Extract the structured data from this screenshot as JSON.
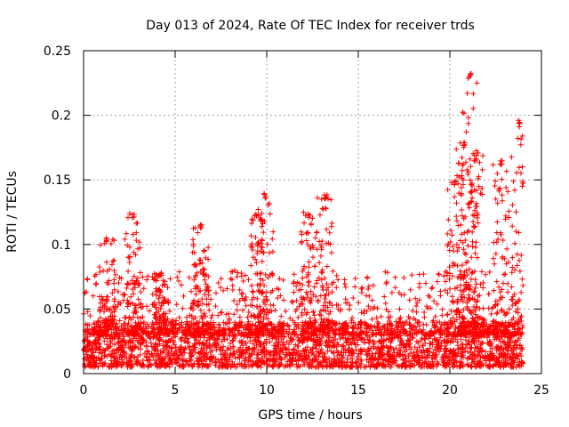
{
  "chart_data": {
    "type": "scatter",
    "title": "Day 013 of 2024, Rate Of TEC Index for receiver trds",
    "xlabel": "GPS time / hours",
    "ylabel": "ROTI / TECUs",
    "xlim": [
      0,
      25
    ],
    "ylim": [
      0,
      0.25
    ],
    "x_ticks": [
      "0",
      "5",
      "10",
      "15",
      "20",
      "25"
    ],
    "y_ticks": [
      "0",
      "0.05",
      "0.1",
      "0.15",
      "0.2",
      "0.25"
    ],
    "grid": true,
    "marker": "+",
    "color": "#ff0000",
    "series": [
      {
        "x_range": [
          0,
          24
        ],
        "baseline_range": [
          0.005,
          0.04
        ],
        "peaks": [
          {
            "x": 1.3,
            "y": 0.105
          },
          {
            "x": 2.7,
            "y": 0.124
          },
          {
            "x": 4.2,
            "y": 0.08
          },
          {
            "x": 6.4,
            "y": 0.117
          },
          {
            "x": 9.4,
            "y": 0.125
          },
          {
            "x": 9.9,
            "y": 0.14
          },
          {
            "x": 12.3,
            "y": 0.125
          },
          {
            "x": 13.2,
            "y": 0.139
          },
          {
            "x": 20.3,
            "y": 0.15
          },
          {
            "x": 20.8,
            "y": 0.18
          },
          {
            "x": 21.1,
            "y": 0.233
          },
          {
            "x": 21.4,
            "y": 0.17
          },
          {
            "x": 22.8,
            "y": 0.165
          },
          {
            "x": 23.8,
            "y": 0.197
          }
        ]
      }
    ]
  }
}
